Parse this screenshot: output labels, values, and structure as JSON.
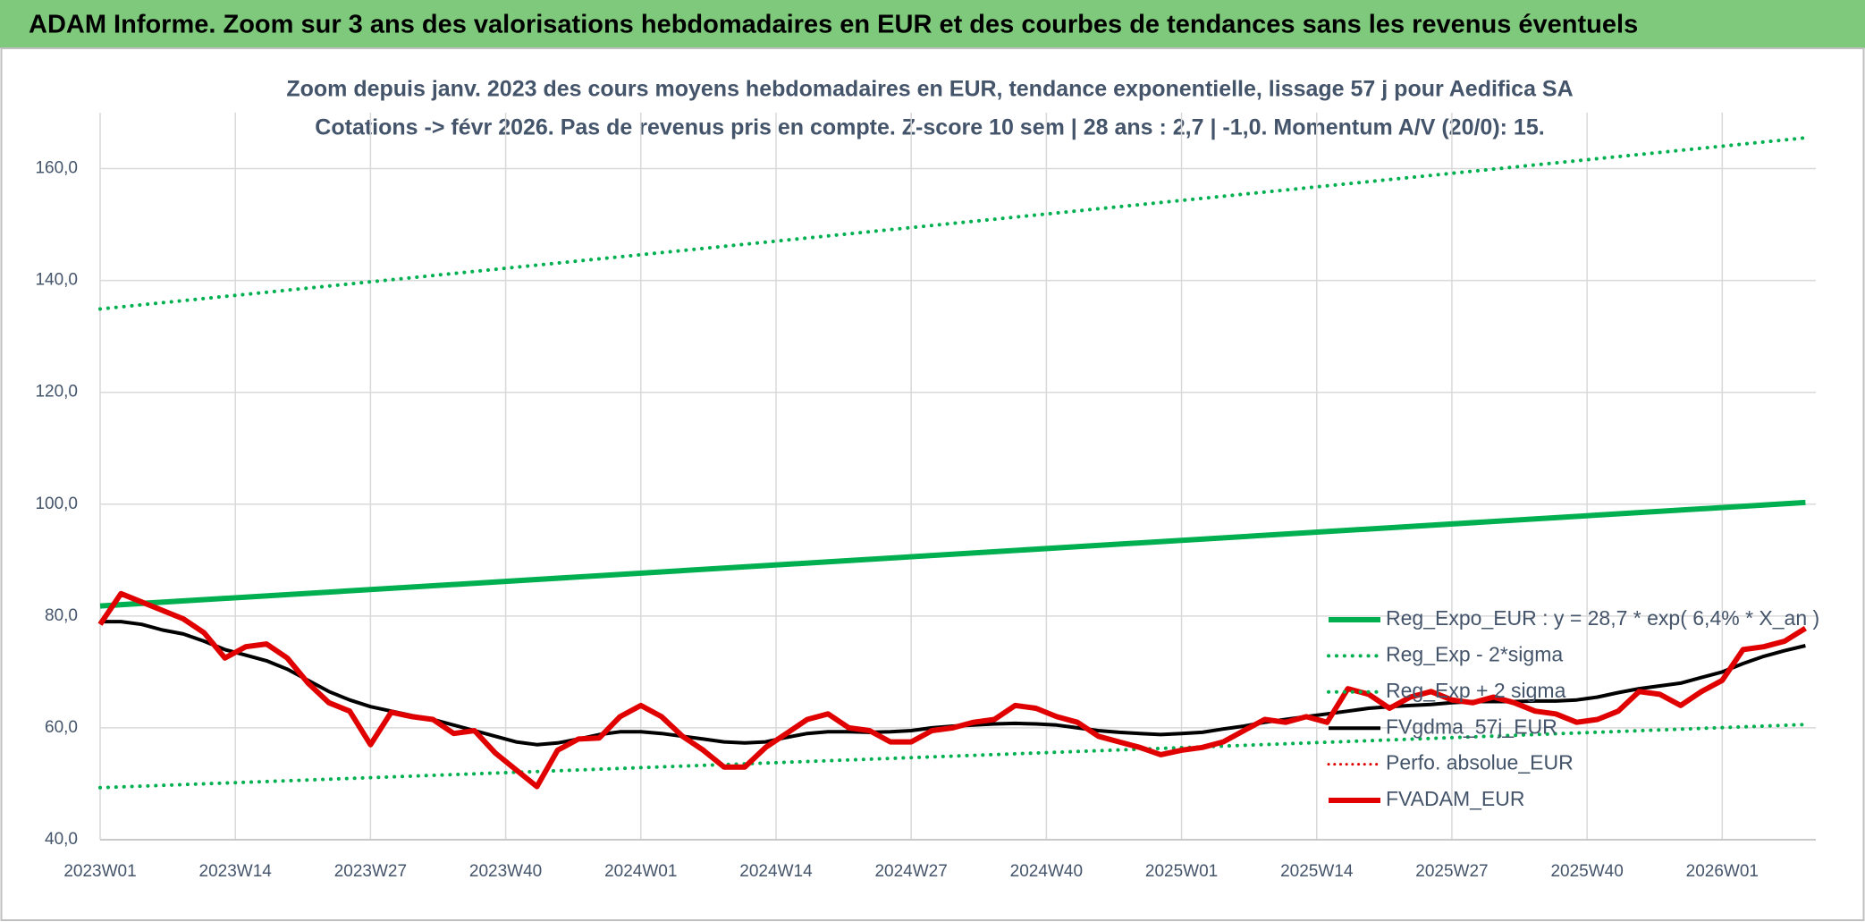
{
  "header": {
    "title": "ADAM Informe. Zoom sur 3 ans des valorisations hebdomadaires en EUR et des courbes de tendances sans les revenus éventuels"
  },
  "chart_data": {
    "type": "line",
    "title": "Zoom depuis janv. 2023 des cours moyens hebdomadaires en EUR, tendance exponentielle, lissage 57 j pour Aedifica SA",
    "subtitle": "Cotations -> févr 2026. Pas de revenus pris en compte. Z-score 10 sem | 28 ans : 2,7 | -1,0. Momentum A/V (20/0): 15.",
    "xlim": [
      0,
      165
    ],
    "xticks": [
      {
        "value": 0,
        "label": "2023W01"
      },
      {
        "value": 13,
        "label": "2023W14"
      },
      {
        "value": 26,
        "label": "2023W27"
      },
      {
        "value": 39,
        "label": "2023W40"
      },
      {
        "value": 52,
        "label": "2024W01"
      },
      {
        "value": 65,
        "label": "2024W14"
      },
      {
        "value": 78,
        "label": "2024W27"
      },
      {
        "value": 91,
        "label": "2024W40"
      },
      {
        "value": 104,
        "label": "2025W01"
      },
      {
        "value": 117,
        "label": "2025W14"
      },
      {
        "value": 130,
        "label": "2025W27"
      },
      {
        "value": 143,
        "label": "2025W40"
      },
      {
        "value": 156,
        "label": "2026W01"
      }
    ],
    "ylim": [
      40,
      170
    ],
    "yticks": [
      {
        "value": 40,
        "label": "40,0"
      },
      {
        "value": 60,
        "label": "60,0"
      },
      {
        "value": 80,
        "label": "80,0"
      },
      {
        "value": 100,
        "label": "100,0"
      },
      {
        "value": 120,
        "label": "120,0"
      },
      {
        "value": 140,
        "label": "140,0"
      },
      {
        "value": 160,
        "label": "160,0"
      }
    ],
    "grid": true,
    "legend": "lower right",
    "series": [
      {
        "name": "Reg_Expo_EUR : y = 28,7 * exp( 6,4% *  X_an )",
        "color": "#00b050",
        "style": "solid",
        "width": 6,
        "x": [
          0,
          164
        ],
        "values": [
          81.8,
          100.3
        ]
      },
      {
        "name": "Reg_Exp - 2*sigma",
        "color": "#00b050",
        "style": "dotted",
        "width": 4,
        "x": [
          0,
          164
        ],
        "values": [
          49.3,
          60.6
        ]
      },
      {
        "name": "Reg_Exp + 2 sigma",
        "color": "#00b050",
        "style": "dotted",
        "width": 4,
        "x": [
          0,
          164
        ],
        "values": [
          134.9,
          165.5
        ]
      },
      {
        "name": "FVgdma_57j_EUR",
        "color": "#000000",
        "style": "solid",
        "width": 4,
        "x": [
          0,
          2,
          4,
          6,
          8,
          10,
          12,
          14,
          16,
          18,
          20,
          22,
          24,
          26,
          28,
          30,
          32,
          34,
          36,
          38,
          40,
          42,
          44,
          46,
          48,
          50,
          52,
          54,
          56,
          58,
          60,
          62,
          64,
          66,
          68,
          70,
          72,
          74,
          76,
          78,
          80,
          82,
          84,
          86,
          88,
          90,
          92,
          94,
          96,
          98,
          100,
          102,
          104,
          106,
          108,
          110,
          112,
          114,
          116,
          118,
          120,
          122,
          124,
          126,
          128,
          130,
          132,
          134,
          136,
          138,
          140,
          142,
          144,
          146,
          148,
          150,
          152,
          154,
          156,
          158,
          160,
          162,
          164
        ],
        "values": [
          79,
          79,
          78.5,
          77.5,
          76.8,
          75.5,
          74,
          73,
          72,
          70.5,
          68.5,
          66.5,
          65,
          63.8,
          63,
          62.2,
          61.5,
          60.5,
          59.5,
          58.5,
          57.5,
          57,
          57.3,
          58,
          58.8,
          59.3,
          59.3,
          59,
          58.5,
          58,
          57.5,
          57.3,
          57.5,
          58.3,
          59,
          59.3,
          59.3,
          59.2,
          59.3,
          59.5,
          60,
          60.3,
          60.5,
          60.7,
          60.8,
          60.7,
          60.5,
          60,
          59.5,
          59.2,
          59,
          58.8,
          59,
          59.2,
          59.8,
          60.3,
          61,
          61.5,
          62,
          62.5,
          63,
          63.5,
          63.8,
          64,
          64.2,
          64.5,
          64.7,
          64.7,
          64.7,
          64.8,
          64.8,
          65,
          65.5,
          66.3,
          67,
          67.5,
          68,
          69,
          70,
          71.5,
          72.8,
          73.8,
          74.7
        ]
      },
      {
        "name": "Perfo. absolue_EUR",
        "color": "#e00000",
        "style": "dotted",
        "width": 3,
        "x": [],
        "values": []
      },
      {
        "name": "FVADAM_EUR",
        "color": "#e00000",
        "style": "solid",
        "width": 6,
        "x": [
          0,
          2,
          4,
          6,
          8,
          10,
          12,
          14,
          16,
          18,
          20,
          22,
          24,
          26,
          28,
          30,
          32,
          34,
          36,
          38,
          40,
          42,
          44,
          46,
          48,
          50,
          52,
          54,
          56,
          58,
          60,
          62,
          64,
          66,
          68,
          70,
          72,
          74,
          76,
          78,
          80,
          82,
          84,
          86,
          88,
          90,
          92,
          94,
          96,
          98,
          100,
          102,
          104,
          106,
          108,
          110,
          112,
          114,
          116,
          118,
          120,
          122,
          124,
          126,
          128,
          130,
          132,
          134,
          136,
          138,
          140,
          142,
          144,
          146,
          148,
          150,
          152,
          154,
          156,
          158,
          160,
          162,
          164
        ],
        "values": [
          78.5,
          84,
          82.5,
          81,
          79.5,
          77,
          72.5,
          74.5,
          75,
          72.5,
          68,
          64.5,
          63,
          57,
          62.8,
          62,
          61.5,
          59,
          59.5,
          55.5,
          52.5,
          49.5,
          56,
          58,
          58.2,
          62,
          64,
          62,
          58.5,
          56,
          53,
          53,
          56.5,
          59,
          61.5,
          62.5,
          60,
          59.5,
          57.5,
          57.5,
          59.5,
          60,
          61,
          61.5,
          64,
          63.5,
          62,
          61,
          58.5,
          57.5,
          56.5,
          55.2,
          56,
          56.5,
          57.5,
          59.5,
          61.5,
          61,
          62,
          61,
          67,
          66,
          63.5,
          65.5,
          66.5,
          65,
          64.5,
          65.5,
          64.5,
          63,
          62.5,
          61,
          61.5,
          63,
          66.5,
          66,
          64,
          66.5,
          68.5,
          74,
          74.5,
          75.5,
          77.8
        ]
      }
    ]
  }
}
